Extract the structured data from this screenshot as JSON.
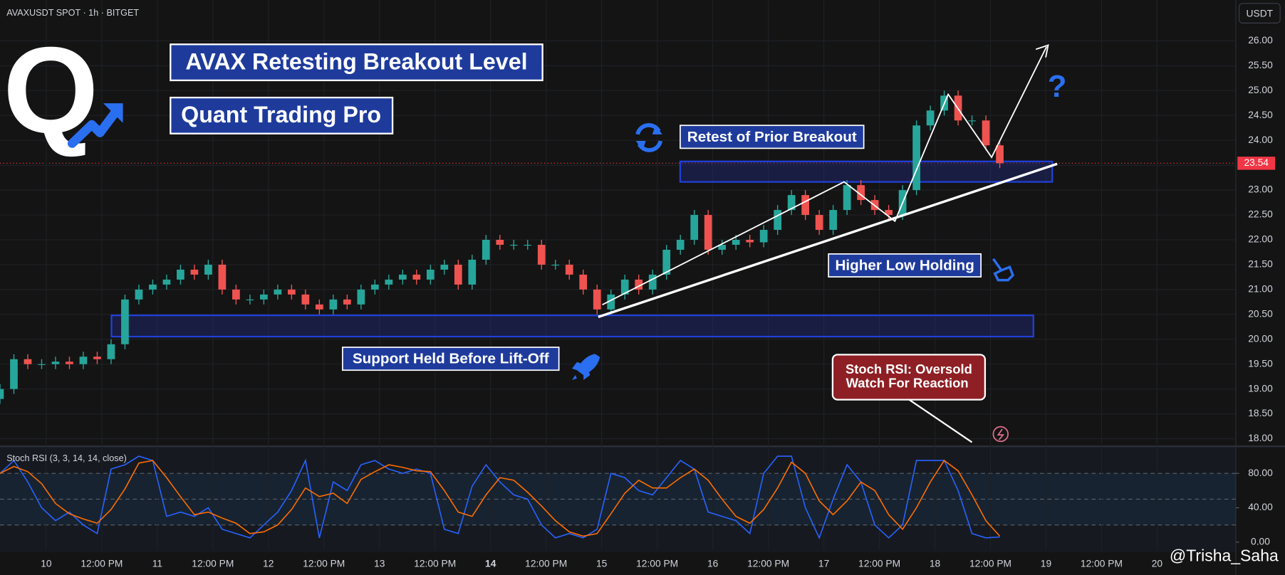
{
  "header": {
    "currency": "USDT",
    "watermark": "@Trisha_Saha"
  },
  "annotations": {
    "logo": "Q",
    "title": "AVAX Retesting Breakout Level",
    "brand": "Quant Trading Pro",
    "retest": "Retest of Prior Breakout",
    "support": "Support Held Before Lift-Off",
    "higher_low": "Higher Low Holding",
    "stoch_note": [
      "Stoch RSI: Oversold",
      "Watch For Reaction"
    ],
    "question": "?"
  },
  "chart_data": [
    {
      "type": "candlestick",
      "title": "AVAXUSDT SPOT · 1h · BITGET",
      "up_color": "#26a69a",
      "down_color": "#ef5350",
      "grid": true,
      "open": [
        18.8,
        19.0,
        19.6,
        19.5,
        19.5,
        19.55,
        19.5,
        19.65,
        19.6,
        19.9,
        20.8,
        21.0,
        21.1,
        21.2,
        21.4,
        21.3,
        21.5,
        21.0,
        20.8,
        20.8,
        20.9,
        21.0,
        20.9,
        20.7,
        20.6,
        20.8,
        20.7,
        21.0,
        21.1,
        21.2,
        21.3,
        21.2,
        21.4,
        21.5,
        21.1,
        21.6,
        22.0,
        21.9,
        21.9,
        21.9,
        21.5,
        21.5,
        21.3,
        21.0,
        20.6,
        20.9,
        21.2,
        21.0,
        21.3,
        21.8,
        22.0,
        22.5,
        21.8,
        21.9,
        22.0,
        21.95,
        22.2,
        22.6,
        22.9,
        22.5,
        22.2,
        22.6,
        23.1,
        22.8,
        22.6,
        22.5,
        23.0,
        24.3,
        24.6,
        24.9,
        24.4,
        24.4,
        23.9
      ],
      "high": [
        19.1,
        19.7,
        19.7,
        19.6,
        19.65,
        19.65,
        19.75,
        19.75,
        20.0,
        20.9,
        21.1,
        21.2,
        21.3,
        21.5,
        21.5,
        21.6,
        21.6,
        21.1,
        20.9,
        21.0,
        21.1,
        21.1,
        21.0,
        20.8,
        20.9,
        20.9,
        21.1,
        21.2,
        21.3,
        21.4,
        21.4,
        21.5,
        21.6,
        21.6,
        21.7,
        22.1,
        22.1,
        22.0,
        22.0,
        22.0,
        21.6,
        21.6,
        21.4,
        21.1,
        21.0,
        21.3,
        21.3,
        21.4,
        21.9,
        22.1,
        22.6,
        22.6,
        22.0,
        22.1,
        22.1,
        22.3,
        22.7,
        23.0,
        23.0,
        22.6,
        22.7,
        23.2,
        23.2,
        22.9,
        22.7,
        23.1,
        24.4,
        24.7,
        25.0,
        25.0,
        24.5,
        24.5,
        24.0
      ],
      "low": [
        18.7,
        18.9,
        19.4,
        19.4,
        19.4,
        19.4,
        19.4,
        19.5,
        19.5,
        19.8,
        20.7,
        20.9,
        21.0,
        21.1,
        21.2,
        21.2,
        20.9,
        20.7,
        20.7,
        20.7,
        20.8,
        20.8,
        20.6,
        20.5,
        20.5,
        20.6,
        20.6,
        20.9,
        21.0,
        21.1,
        21.1,
        21.1,
        21.3,
        21.0,
        21.0,
        21.5,
        21.8,
        21.8,
        21.8,
        21.4,
        21.4,
        21.2,
        20.9,
        20.5,
        20.5,
        20.8,
        20.9,
        20.9,
        21.2,
        21.7,
        21.9,
        21.7,
        21.7,
        21.8,
        21.85,
        21.85,
        22.1,
        22.5,
        22.4,
        22.1,
        22.1,
        22.5,
        22.7,
        22.5,
        22.4,
        22.4,
        22.9,
        24.2,
        24.5,
        24.3,
        24.3,
        23.8,
        23.44
      ],
      "close": [
        19.0,
        19.6,
        19.5,
        19.5,
        19.55,
        19.5,
        19.65,
        19.6,
        19.9,
        20.8,
        21.0,
        21.1,
        21.2,
        21.4,
        21.3,
        21.5,
        21.0,
        20.8,
        20.8,
        20.9,
        21.0,
        20.9,
        20.7,
        20.6,
        20.8,
        20.7,
        21.0,
        21.1,
        21.2,
        21.3,
        21.2,
        21.4,
        21.5,
        21.1,
        21.6,
        22.0,
        21.9,
        21.9,
        21.9,
        21.5,
        21.5,
        21.3,
        21.0,
        20.6,
        20.9,
        21.2,
        21.0,
        21.3,
        21.8,
        22.0,
        22.5,
        21.8,
        21.9,
        22.0,
        21.95,
        22.2,
        22.6,
        22.9,
        22.5,
        22.2,
        22.6,
        23.1,
        22.8,
        22.6,
        22.5,
        23.0,
        24.3,
        24.6,
        24.9,
        24.4,
        24.4,
        23.9,
        23.54
      ],
      "last_price": 23.54,
      "last_price_color": "#f23645",
      "xlim": [
        0,
        89
      ],
      "ylim": [
        17.88,
        26.82
      ],
      "yticks": [
        {
          "value": 18,
          "label": "18.00"
        },
        {
          "value": 18.5,
          "label": "18.50"
        },
        {
          "value": 19,
          "label": "19.00"
        },
        {
          "value": 19.5,
          "label": "19.50"
        },
        {
          "value": 20,
          "label": "20.00"
        },
        {
          "value": 20.5,
          "label": "20.50"
        },
        {
          "value": 21,
          "label": "21.00"
        },
        {
          "value": 21.5,
          "label": "21.50"
        },
        {
          "value": 22,
          "label": "22.00"
        },
        {
          "value": 22.5,
          "label": "22.50"
        },
        {
          "value": 23,
          "label": "23.00"
        },
        {
          "value": 23.5,
          "label": "23.50"
        },
        {
          "value": 24,
          "label": "24.00"
        },
        {
          "value": 24.5,
          "label": "24.50"
        },
        {
          "value": 25,
          "label": "25.00"
        },
        {
          "value": 25.5,
          "label": "25.50"
        },
        {
          "value": 26,
          "label": "26.00"
        }
      ]
    },
    {
      "type": "line",
      "title": "Stoch RSI (3, 3, 14, 14, close)",
      "grid": true,
      "series": [
        {
          "color": "#2962ff",
          "values": [
            80,
            95,
            70,
            40,
            25,
            35,
            20,
            10,
            85,
            90,
            100,
            95,
            30,
            35,
            30,
            40,
            15,
            10,
            5,
            20,
            35,
            60,
            95,
            5,
            70,
            60,
            90,
            95,
            85,
            80,
            85,
            80,
            15,
            10,
            65,
            90,
            70,
            55,
            50,
            20,
            5,
            10,
            5,
            15,
            80,
            75,
            60,
            55,
            75,
            95,
            85,
            35,
            30,
            25,
            10,
            80,
            100,
            100,
            40,
            5,
            50,
            90,
            70,
            20,
            5,
            20,
            95,
            95,
            95,
            60,
            10,
            5,
            6
          ]
        },
        {
          "color": "#ff6d00",
          "values": [
            80,
            88,
            82,
            68,
            45,
            33,
            27,
            22,
            38,
            62,
            92,
            95,
            75,
            53,
            32,
            35,
            28,
            22,
            10,
            12,
            20,
            38,
            63,
            53,
            57,
            45,
            73,
            82,
            90,
            87,
            83,
            82,
            60,
            35,
            30,
            55,
            75,
            72,
            58,
            42,
            25,
            12,
            7,
            10,
            33,
            57,
            72,
            63,
            63,
            75,
            85,
            72,
            50,
            30,
            22,
            38,
            63,
            93,
            80,
            48,
            32,
            48,
            70,
            60,
            32,
            15,
            40,
            70,
            95,
            83,
            55,
            25,
            7
          ]
        }
      ],
      "levels": [
        20,
        50,
        80
      ],
      "xlim": [
        0,
        89
      ],
      "ylim": [
        -9.5,
        108.6
      ],
      "yticks": [
        {
          "value": 0,
          "label": "0.00"
        },
        {
          "value": 40,
          "label": "40.00"
        },
        {
          "value": 80,
          "label": "80.00"
        }
      ],
      "xticks": [
        {
          "value": 3.33,
          "label": "10"
        },
        {
          "value": 7.33,
          "label": "12:00 PM"
        },
        {
          "value": 11.33,
          "label": "11"
        },
        {
          "value": 15.33,
          "label": "12:00 PM"
        },
        {
          "value": 19.33,
          "label": "12"
        },
        {
          "value": 23.33,
          "label": "12:00 PM"
        },
        {
          "value": 27.33,
          "label": "13"
        },
        {
          "value": 31.33,
          "label": "12:00 PM"
        },
        {
          "value": 35.33,
          "label": "14",
          "bold": true
        },
        {
          "value": 39.33,
          "label": "12:00 PM"
        },
        {
          "value": 43.33,
          "label": "15"
        },
        {
          "value": 47.33,
          "label": "12:00 PM"
        },
        {
          "value": 51.33,
          "label": "16"
        },
        {
          "value": 55.33,
          "label": "12:00 PM"
        },
        {
          "value": 59.33,
          "label": "17"
        },
        {
          "value": 63.33,
          "label": "12:00 PM"
        },
        {
          "value": 67.33,
          "label": "18"
        },
        {
          "value": 71.33,
          "label": "12:00 PM"
        },
        {
          "value": 75.33,
          "label": "19"
        },
        {
          "value": 79.33,
          "label": "12:00 PM"
        },
        {
          "value": 83.33,
          "label": "20"
        }
      ]
    }
  ]
}
